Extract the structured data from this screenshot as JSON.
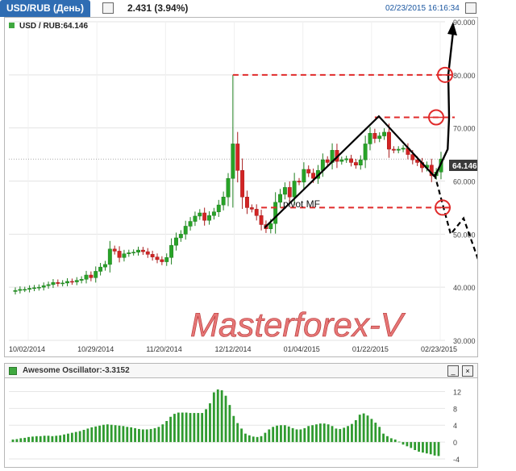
{
  "header": {
    "title": "USD/RUB (День)",
    "change": "2.431 (3.94%)",
    "datetime": "02/23/2015 16:16:34"
  },
  "price_panel": {
    "legend": "USD / RUB:64.146",
    "current_price": "64.146",
    "watermark": "Masterforex-V",
    "annotation": "pivot MF"
  },
  "oscillator_panel": {
    "legend": "Awesome Oscillator:-3.3152",
    "minimize_label": "_",
    "close_label": "×"
  },
  "colors": {
    "bull": "#27a327",
    "bear": "#d22424",
    "header_blue": "#2f6db3",
    "dash_red": "#e02b2b"
  },
  "chart_data": [
    {
      "type": "candlestick",
      "title": "USD / RUB:64.146",
      "x_tick_labels": [
        "10/02/2014",
        "10/29/2014",
        "11/20/2014",
        "12/12/2014",
        "01/04/2015",
        "01/22/2015",
        "02/23/2015"
      ],
      "y_tick_labels": [
        "90.000",
        "80.000",
        "70.000",
        "60.000",
        "50.000",
        "40.000",
        "30.000"
      ],
      "ylim": [
        30,
        90
      ],
      "grid": true,
      "current_value": 64.146,
      "close_series": [
        39.4,
        39.6,
        39.6,
        39.8,
        39.9,
        40.0,
        40.3,
        40.5,
        40.9,
        40.7,
        40.8,
        41.1,
        41.0,
        41.3,
        41.5,
        42.3,
        41.8,
        43.0,
        43.8,
        44.3,
        47.2,
        46.8,
        45.6,
        46.3,
        46.5,
        46.6,
        47.0,
        46.7,
        46.2,
        45.7,
        45.2,
        44.8,
        45.6,
        47.9,
        49.3,
        50.0,
        51.5,
        52.4,
        53.4,
        54.0,
        52.6,
        53.5,
        54.2,
        55.5,
        57.0,
        60.5,
        67.0,
        62.0,
        57.0,
        55.0,
        54.7,
        53.5,
        51.8,
        51.0,
        52.0,
        56.0,
        57.5,
        58.8,
        57.0,
        60.0,
        59.8,
        62.2,
        61.5,
        60.5,
        62.0,
        64.0,
        63.5,
        65.8,
        63.7,
        64.0,
        64.2,
        63.5,
        63.0,
        64.0,
        67.0,
        69.0,
        68.0,
        68.5,
        69.2,
        66.0,
        65.8,
        66.0,
        66.2,
        65.0,
        64.0,
        63.5,
        62.5,
        63.0,
        61.0,
        61.7,
        64.146
      ],
      "dashed_levels": [
        80,
        72,
        55
      ],
      "arrow_projections": {
        "up_target": 90,
        "down_target": 43
      }
    },
    {
      "type": "bar",
      "title": "Awesome Oscillator:-3.3152",
      "y_tick_labels": [
        "12",
        "8",
        "4",
        "0",
        "-4"
      ],
      "ylim": [
        -4,
        14
      ],
      "values": [
        0.6,
        0.7,
        0.9,
        1.0,
        1.2,
        1.3,
        1.4,
        1.4,
        1.5,
        1.5,
        1.4,
        1.5,
        1.6,
        1.8,
        2.0,
        2.2,
        2.4,
        2.6,
        2.9,
        3.2,
        3.5,
        3.7,
        3.9,
        4.1,
        4.2,
        4.1,
        4.0,
        3.9,
        3.8,
        3.6,
        3.5,
        3.3,
        3.1,
        3.0,
        3.0,
        3.1,
        3.3,
        3.6,
        4.2,
        5.0,
        6.0,
        6.7,
        7.0,
        7.0,
        7.0,
        6.9,
        6.9,
        6.9,
        6.9,
        7.8,
        9.2,
        11.8,
        12.5,
        12.3,
        11.0,
        8.8,
        6.2,
        4.5,
        3.2,
        2.0,
        1.6,
        1.3,
        1.2,
        1.4,
        2.2,
        3.0,
        3.6,
        3.9,
        4.0,
        4.0,
        3.7,
        3.3,
        3.0,
        3.0,
        3.3,
        3.8,
        4.0,
        4.2,
        4.4,
        4.4,
        4.2,
        3.8,
        3.2,
        3.1,
        3.4,
        3.8,
        4.3,
        5.2,
        6.5,
        6.8,
        6.3,
        5.5,
        4.6,
        3.6,
        2.0,
        1.4,
        0.9,
        0.6,
        0.1,
        -0.6,
        -1.0,
        -1.4,
        -1.9,
        -2.3,
        -2.5,
        -2.7,
        -2.9,
        -3.2,
        -3.3152
      ]
    }
  ]
}
